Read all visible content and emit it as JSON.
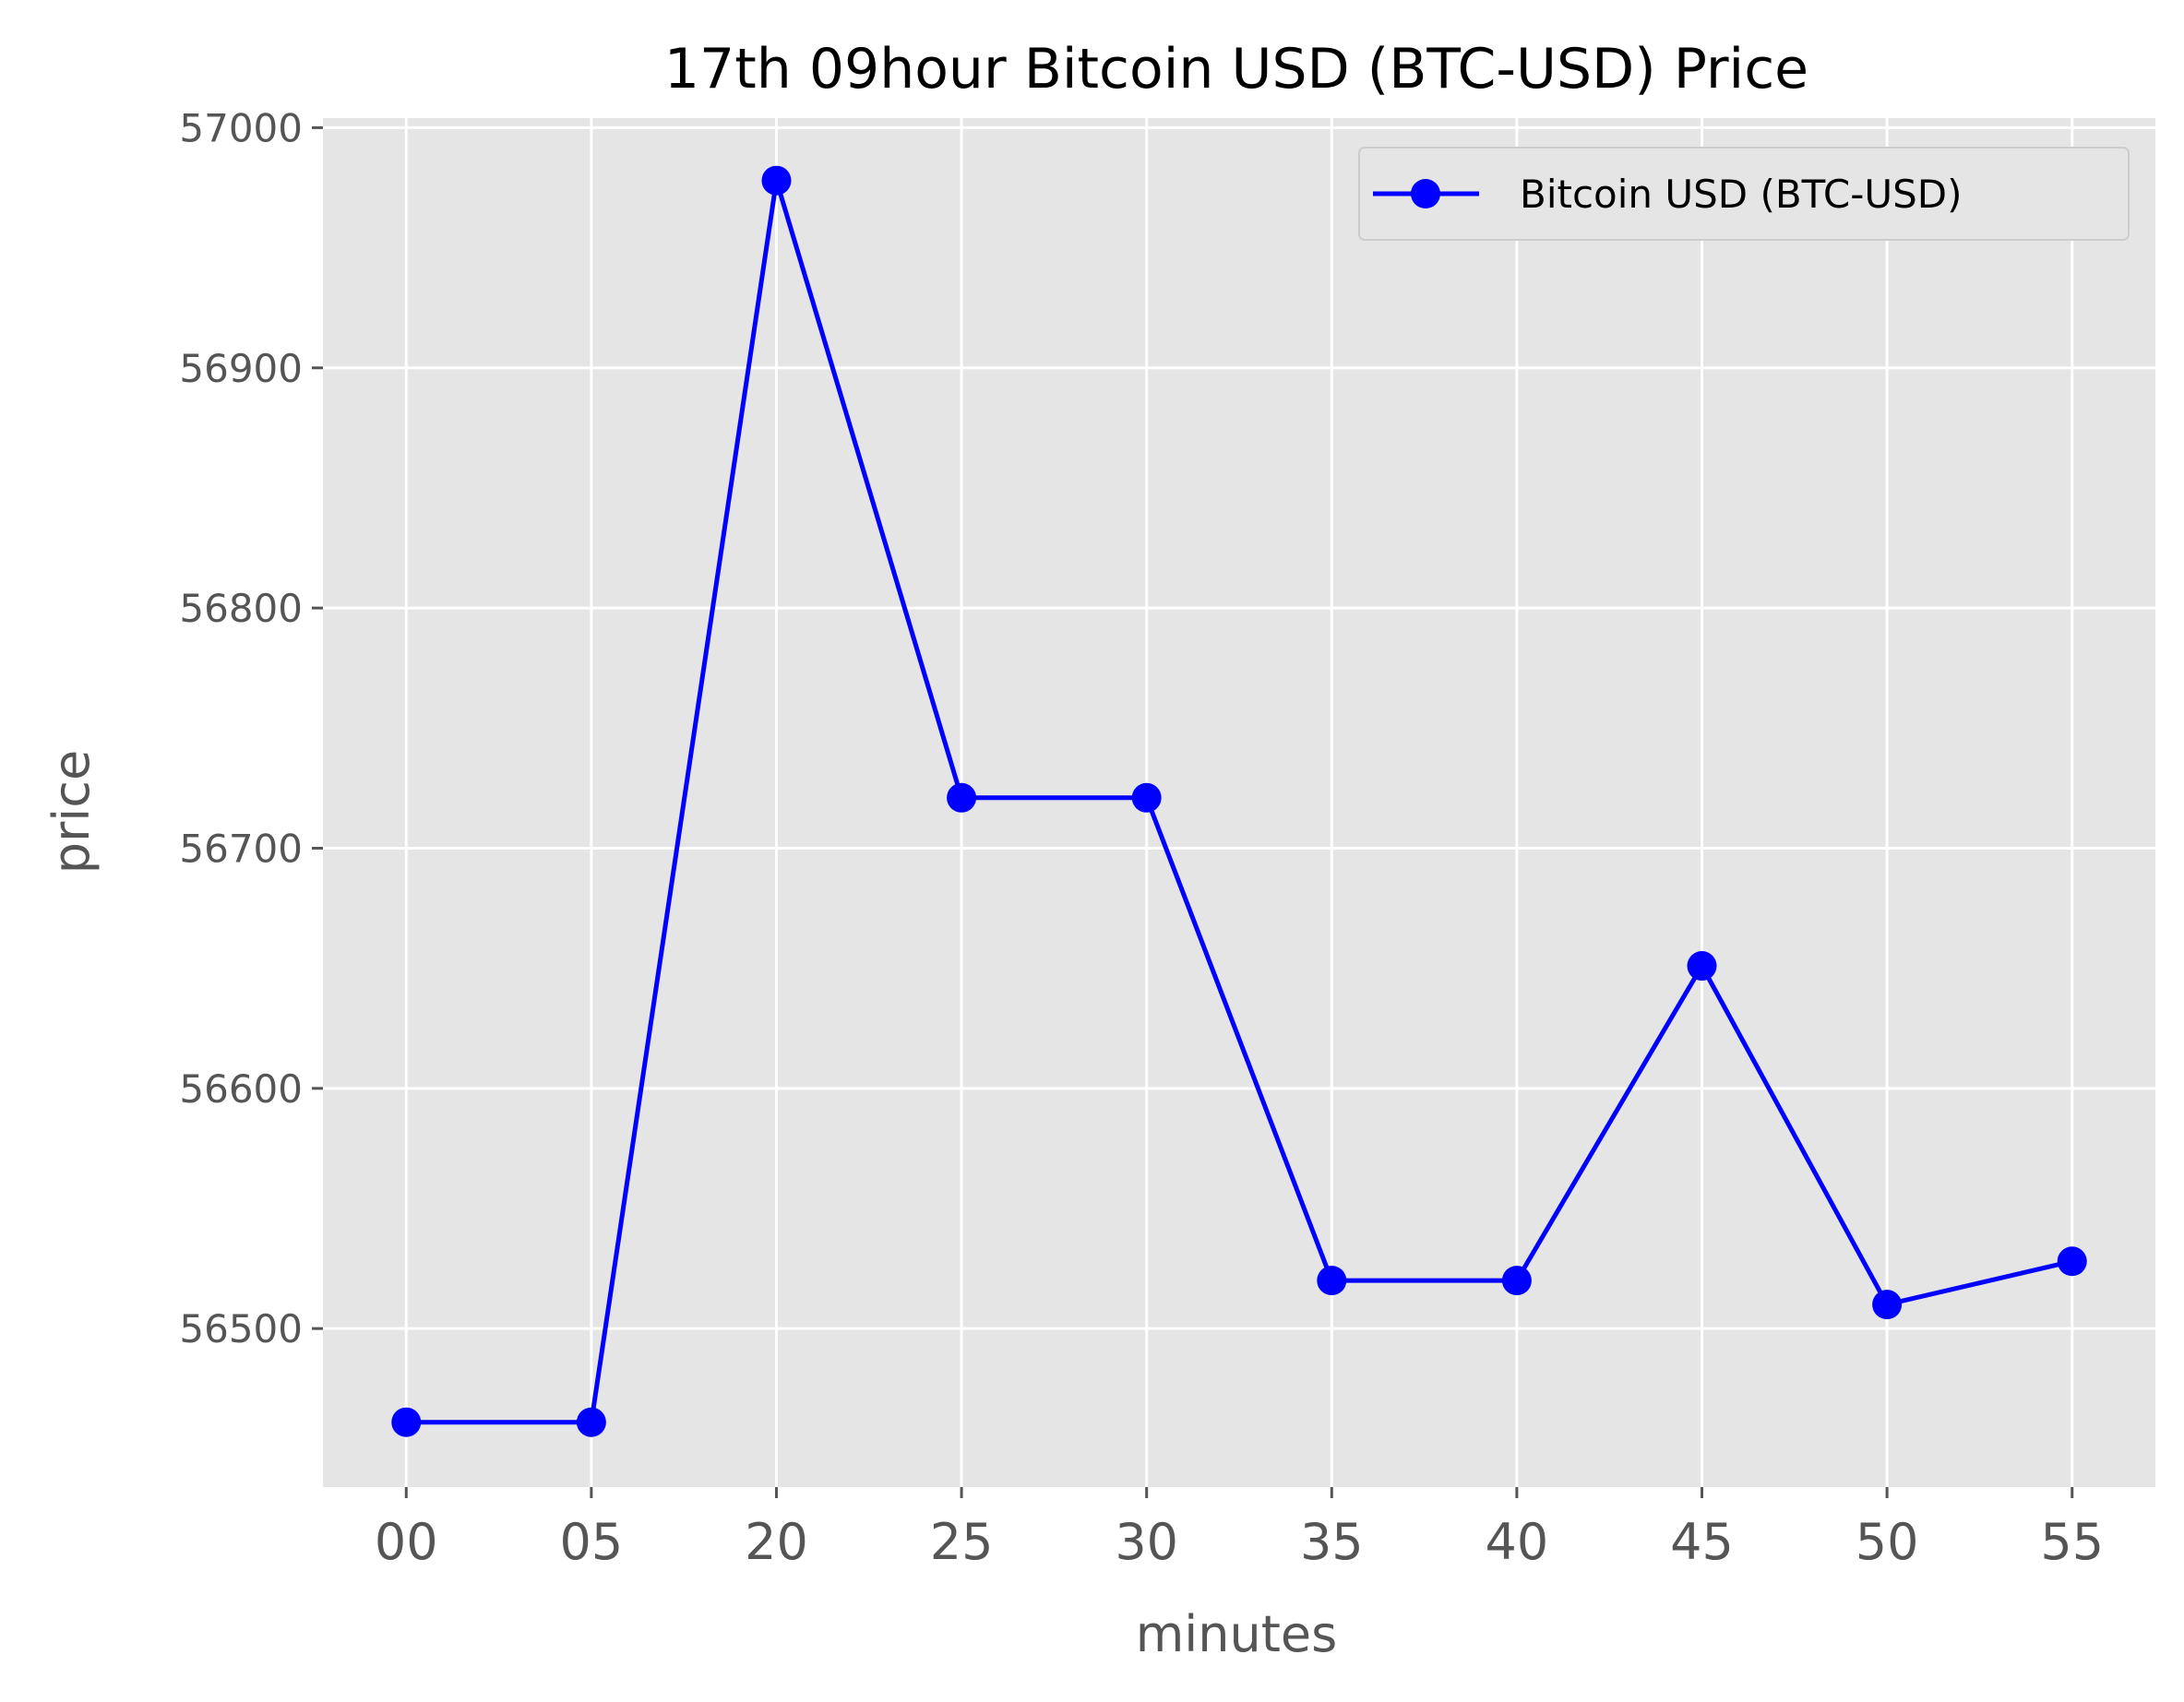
{
  "chart_data": {
    "type": "line",
    "title": "17th 09hour Bitcoin USD (BTC-USD) Price",
    "xlabel": "minutes",
    "ylabel": "price",
    "categories": [
      "00",
      "05",
      "20",
      "25",
      "30",
      "35",
      "40",
      "45",
      "50",
      "55"
    ],
    "series": [
      {
        "name": "Bitcoin USD (BTC-USD)",
        "values": [
          56461,
          56461,
          56978,
          56721,
          56721,
          56520,
          56520,
          56651,
          56510,
          56528
        ],
        "color": "#0000ff",
        "marker": "circle"
      }
    ],
    "ylim": [
      56434,
      57004
    ],
    "yticks": [
      56500,
      56600,
      56700,
      56800,
      56900,
      57000
    ],
    "ytick_labels": [
      "56500",
      "56600",
      "56700",
      "56800",
      "56900",
      "57000"
    ],
    "grid": true,
    "legend_position": "upper right",
    "plot_background": "#e5e5e5",
    "grid_color": "#ffffff"
  }
}
